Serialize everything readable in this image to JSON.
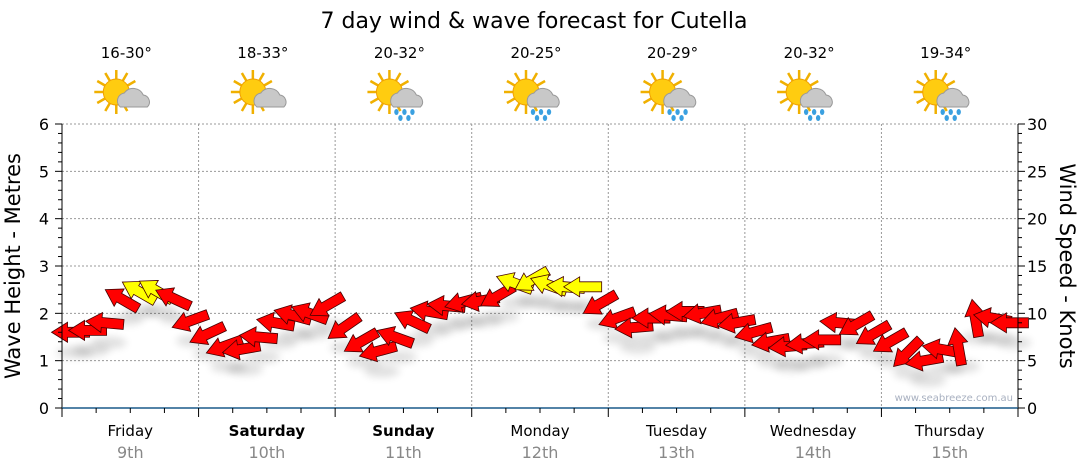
{
  "chart_data": {
    "type": "scatter",
    "title": "7 day wind & wave forecast for Cutella",
    "ylabel_left": "Wave Height - Metres",
    "ylabel_right": "Wind Speed - Knots",
    "ylim_left": [
      0,
      6
    ],
    "ylim_right": [
      0,
      30
    ],
    "yticks_left": [
      "0",
      "1",
      "2",
      "3",
      "4",
      "5",
      "6"
    ],
    "yticks_right": [
      "0",
      "5",
      "10",
      "15",
      "20",
      "25",
      "30"
    ],
    "grid": true,
    "watermark": "www.seabreeze.com.au",
    "days": [
      {
        "name": "Friday",
        "date": "9th",
        "bold": false,
        "temp": "16-30°",
        "icon": "sun-cloud"
      },
      {
        "name": "Saturday",
        "date": "10th",
        "bold": true,
        "temp": "18-33°",
        "icon": "sun-cloud"
      },
      {
        "name": "Sunday",
        "date": "11th",
        "bold": true,
        "temp": "20-32°",
        "icon": "sun-cloud-rain"
      },
      {
        "name": "Monday",
        "date": "12th",
        "bold": false,
        "temp": "20-25°",
        "icon": "sun-cloud-rain"
      },
      {
        "name": "Tuesday",
        "date": "13th",
        "bold": false,
        "temp": "20-29°",
        "icon": "sun-cloud-rain"
      },
      {
        "name": "Wednesday",
        "date": "14th",
        "bold": false,
        "temp": "20-32°",
        "icon": "sun-cloud-rain"
      },
      {
        "name": "Thursday",
        "date": "15th",
        "bold": false,
        "temp": "19-34°",
        "icon": "sun-cloud-rain"
      }
    ],
    "wind_knots": [
      8.0,
      8.2,
      9.0,
      11.5,
      12.3,
      12.4,
      11.6,
      9.2,
      7.8,
      6.5,
      6.2,
      7.5,
      9.0,
      9.8,
      10.0,
      10.8,
      8.5,
      7.0,
      6.0,
      7.5,
      9.2,
      10.2,
      10.8,
      11.2,
      11.3,
      11.8,
      13.2,
      13.5,
      13.0,
      12.8,
      12.8,
      11.0,
      9.5,
      8.5,
      9.5,
      9.8,
      10.2,
      10.0,
      9.5,
      9.0,
      8.0,
      7.0,
      6.5,
      6.8,
      7.2,
      9.0,
      8.8,
      7.8,
      7.0,
      5.8,
      5.0,
      6.2,
      6.5,
      9.5,
      9.5,
      9.0
    ],
    "wind_from_deg": [
      90,
      90,
      95,
      120,
      120,
      120,
      115,
      70,
      65,
      70,
      80,
      95,
      100,
      105,
      110,
      60,
      55,
      60,
      75,
      110,
      115,
      100,
      95,
      75,
      80,
      60,
      110,
      60,
      110,
      95,
      90,
      60,
      70,
      85,
      90,
      95,
      90,
      80,
      75,
      80,
      75,
      80,
      85,
      85,
      90,
      95,
      60,
      60,
      60,
      45,
      80,
      100,
      170,
      170,
      100,
      90
    ],
    "colors": {
      "normal": "#ff0000",
      "strong": "#ffff00",
      "strong_threshold_knots": 12
    }
  }
}
